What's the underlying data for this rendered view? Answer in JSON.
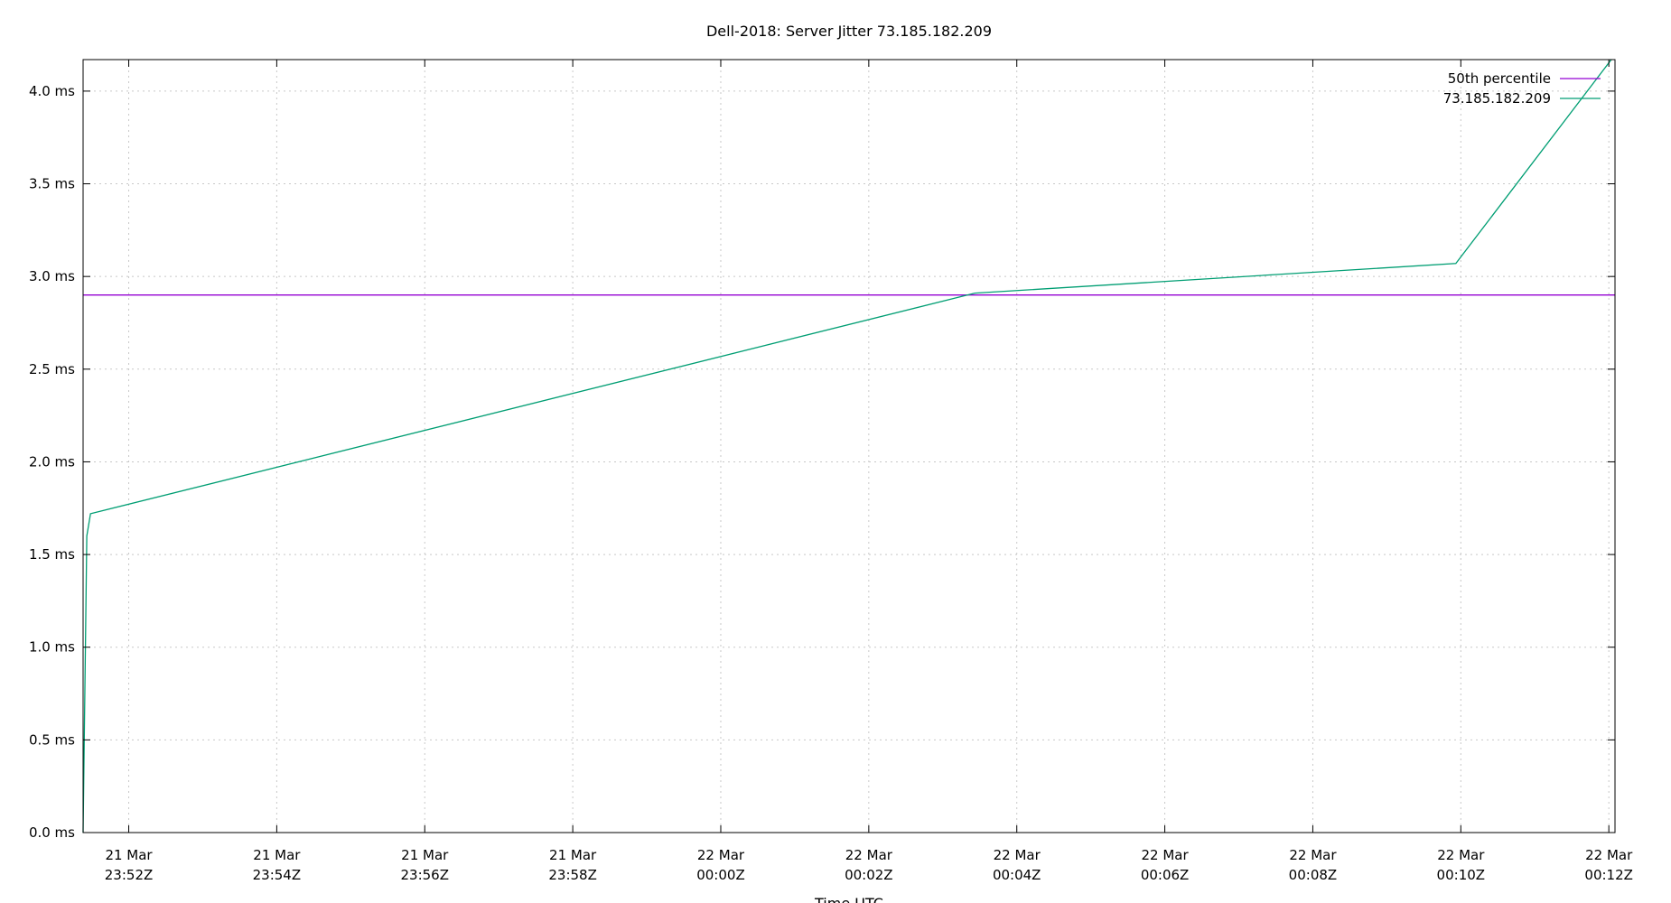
{
  "chart_data": {
    "type": "line",
    "title": "Dell-2018: Server Jitter 73.185.182.209",
    "xlabel": "Time UTC",
    "ylabel": "",
    "x_ticks": [
      {
        "date": "21 Mar",
        "time": "23:52Z",
        "t": "2024-03-21T23:52:00Z"
      },
      {
        "date": "21 Mar",
        "time": "23:54Z",
        "t": "2024-03-21T23:54:00Z"
      },
      {
        "date": "21 Mar",
        "time": "23:56Z",
        "t": "2024-03-21T23:56:00Z"
      },
      {
        "date": "21 Mar",
        "time": "23:58Z",
        "t": "2024-03-21T23:58:00Z"
      },
      {
        "date": "22 Mar",
        "time": "00:00Z",
        "t": "2024-03-22T00:00:00Z"
      },
      {
        "date": "22 Mar",
        "time": "00:02Z",
        "t": "2024-03-22T00:02:00Z"
      },
      {
        "date": "22 Mar",
        "time": "00:04Z",
        "t": "2024-03-22T00:04:00Z"
      },
      {
        "date": "22 Mar",
        "time": "00:06Z",
        "t": "2024-03-22T00:06:00Z"
      },
      {
        "date": "22 Mar",
        "time": "00:08Z",
        "t": "2024-03-22T00:08:00Z"
      },
      {
        "date": "22 Mar",
        "time": "00:10Z",
        "t": "2024-03-22T00:10:00Z"
      },
      {
        "date": "22 Mar",
        "time": "00:12Z",
        "t": "2024-03-22T00:12:00Z"
      }
    ],
    "y_ticks": [
      {
        "value": 0.0,
        "label": "0.0 ms"
      },
      {
        "value": 0.5,
        "label": "0.5 ms"
      },
      {
        "value": 1.0,
        "label": "1.0 ms"
      },
      {
        "value": 1.5,
        "label": "1.5 ms"
      },
      {
        "value": 2.0,
        "label": "2.0 ms"
      },
      {
        "value": 2.5,
        "label": "2.5 ms"
      },
      {
        "value": 3.0,
        "label": "3.0 ms"
      },
      {
        "value": 3.5,
        "label": "3.5 ms"
      },
      {
        "value": 4.0,
        "label": "4.0 ms"
      }
    ],
    "xlim": [
      "2024-03-21T23:51:23Z",
      "2024-03-22T00:12:05Z"
    ],
    "ylim": [
      0,
      4.17
    ],
    "grid": true,
    "legend_position": "top-right",
    "series": [
      {
        "name": "50th percentile",
        "color": "#9400d3",
        "points": [
          {
            "t": "2024-03-21T23:51:23Z",
            "y": 2.9
          },
          {
            "t": "2024-03-22T00:12:05Z",
            "y": 2.9
          }
        ]
      },
      {
        "name": "73.185.182.209",
        "color": "#009e73",
        "points": [
          {
            "t": "2024-03-21T23:51:23Z",
            "y": 0.0
          },
          {
            "t": "2024-03-21T23:51:26Z",
            "y": 1.6
          },
          {
            "t": "2024-03-21T23:51:29Z",
            "y": 1.72
          },
          {
            "t": "2024-03-22T00:03:26Z",
            "y": 2.91
          },
          {
            "t": "2024-03-22T00:09:56Z",
            "y": 3.07
          },
          {
            "t": "2024-03-22T00:12:02Z",
            "y": 4.17
          }
        ]
      }
    ]
  }
}
